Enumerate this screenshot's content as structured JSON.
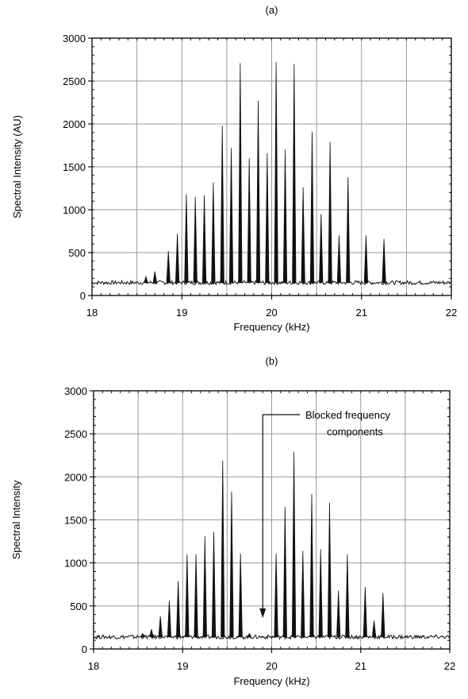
{
  "chart_data": [
    {
      "type": "line",
      "panel_label": "(a)",
      "xlabel": "Frequency (kHz)",
      "ylabel": "Spectral Intensity (AU)",
      "xlim": [
        18,
        22
      ],
      "ylim": [
        0,
        3000
      ],
      "x_ticks": [
        18,
        19,
        20,
        21,
        22
      ],
      "y_ticks": [
        0,
        500,
        1000,
        1500,
        2000,
        2500,
        3000
      ],
      "grid": true,
      "baseline": 150,
      "peaks": [
        {
          "x": 18.6,
          "y": 220
        },
        {
          "x": 18.7,
          "y": 280
        },
        {
          "x": 18.85,
          "y": 520
        },
        {
          "x": 18.95,
          "y": 720
        },
        {
          "x": 19.05,
          "y": 1180
        },
        {
          "x": 19.15,
          "y": 1150
        },
        {
          "x": 19.25,
          "y": 1170
        },
        {
          "x": 19.35,
          "y": 1320
        },
        {
          "x": 19.45,
          "y": 1980
        },
        {
          "x": 19.55,
          "y": 1720
        },
        {
          "x": 19.65,
          "y": 2710
        },
        {
          "x": 19.75,
          "y": 1600
        },
        {
          "x": 19.85,
          "y": 2270
        },
        {
          "x": 19.95,
          "y": 1660
        },
        {
          "x": 20.05,
          "y": 2720
        },
        {
          "x": 20.15,
          "y": 1700
        },
        {
          "x": 20.25,
          "y": 2700
        },
        {
          "x": 20.35,
          "y": 1260
        },
        {
          "x": 20.45,
          "y": 1910
        },
        {
          "x": 20.55,
          "y": 950
        },
        {
          "x": 20.65,
          "y": 1790
        },
        {
          "x": 20.75,
          "y": 700
        },
        {
          "x": 20.85,
          "y": 1380
        },
        {
          "x": 21.05,
          "y": 700
        },
        {
          "x": 21.25,
          "y": 660
        }
      ]
    },
    {
      "type": "line",
      "panel_label": "(b)",
      "xlabel": "Frequency (kHz)",
      "ylabel": "Spectral Intensity",
      "xlim": [
        18,
        22
      ],
      "ylim": [
        0,
        3000
      ],
      "x_ticks": [
        18,
        19,
        20,
        21,
        22
      ],
      "y_ticks": [
        0,
        500,
        1000,
        1500,
        2000,
        2500,
        3000
      ],
      "grid": true,
      "baseline": 140,
      "annotation": {
        "text_line1": "Blocked frequency",
        "text_line2": "components",
        "arrow_x": 19.9
      },
      "peaks": [
        {
          "x": 18.55,
          "y": 180
        },
        {
          "x": 18.65,
          "y": 230
        },
        {
          "x": 18.75,
          "y": 380
        },
        {
          "x": 18.85,
          "y": 560
        },
        {
          "x": 18.95,
          "y": 790
        },
        {
          "x": 19.05,
          "y": 1100
        },
        {
          "x": 19.15,
          "y": 1100
        },
        {
          "x": 19.25,
          "y": 1310
        },
        {
          "x": 19.35,
          "y": 1360
        },
        {
          "x": 19.45,
          "y": 2190
        },
        {
          "x": 19.55,
          "y": 1830
        },
        {
          "x": 19.65,
          "y": 1110
        },
        {
          "x": 19.75,
          "y": 180
        },
        {
          "x": 20.05,
          "y": 1110
        },
        {
          "x": 20.15,
          "y": 1650
        },
        {
          "x": 20.25,
          "y": 2290
        },
        {
          "x": 20.35,
          "y": 1140
        },
        {
          "x": 20.45,
          "y": 1800
        },
        {
          "x": 20.55,
          "y": 1160
        },
        {
          "x": 20.65,
          "y": 1700
        },
        {
          "x": 20.75,
          "y": 680
        },
        {
          "x": 20.85,
          "y": 1100
        },
        {
          "x": 21.05,
          "y": 720
        },
        {
          "x": 21.15,
          "y": 330
        },
        {
          "x": 21.25,
          "y": 650
        }
      ]
    }
  ]
}
